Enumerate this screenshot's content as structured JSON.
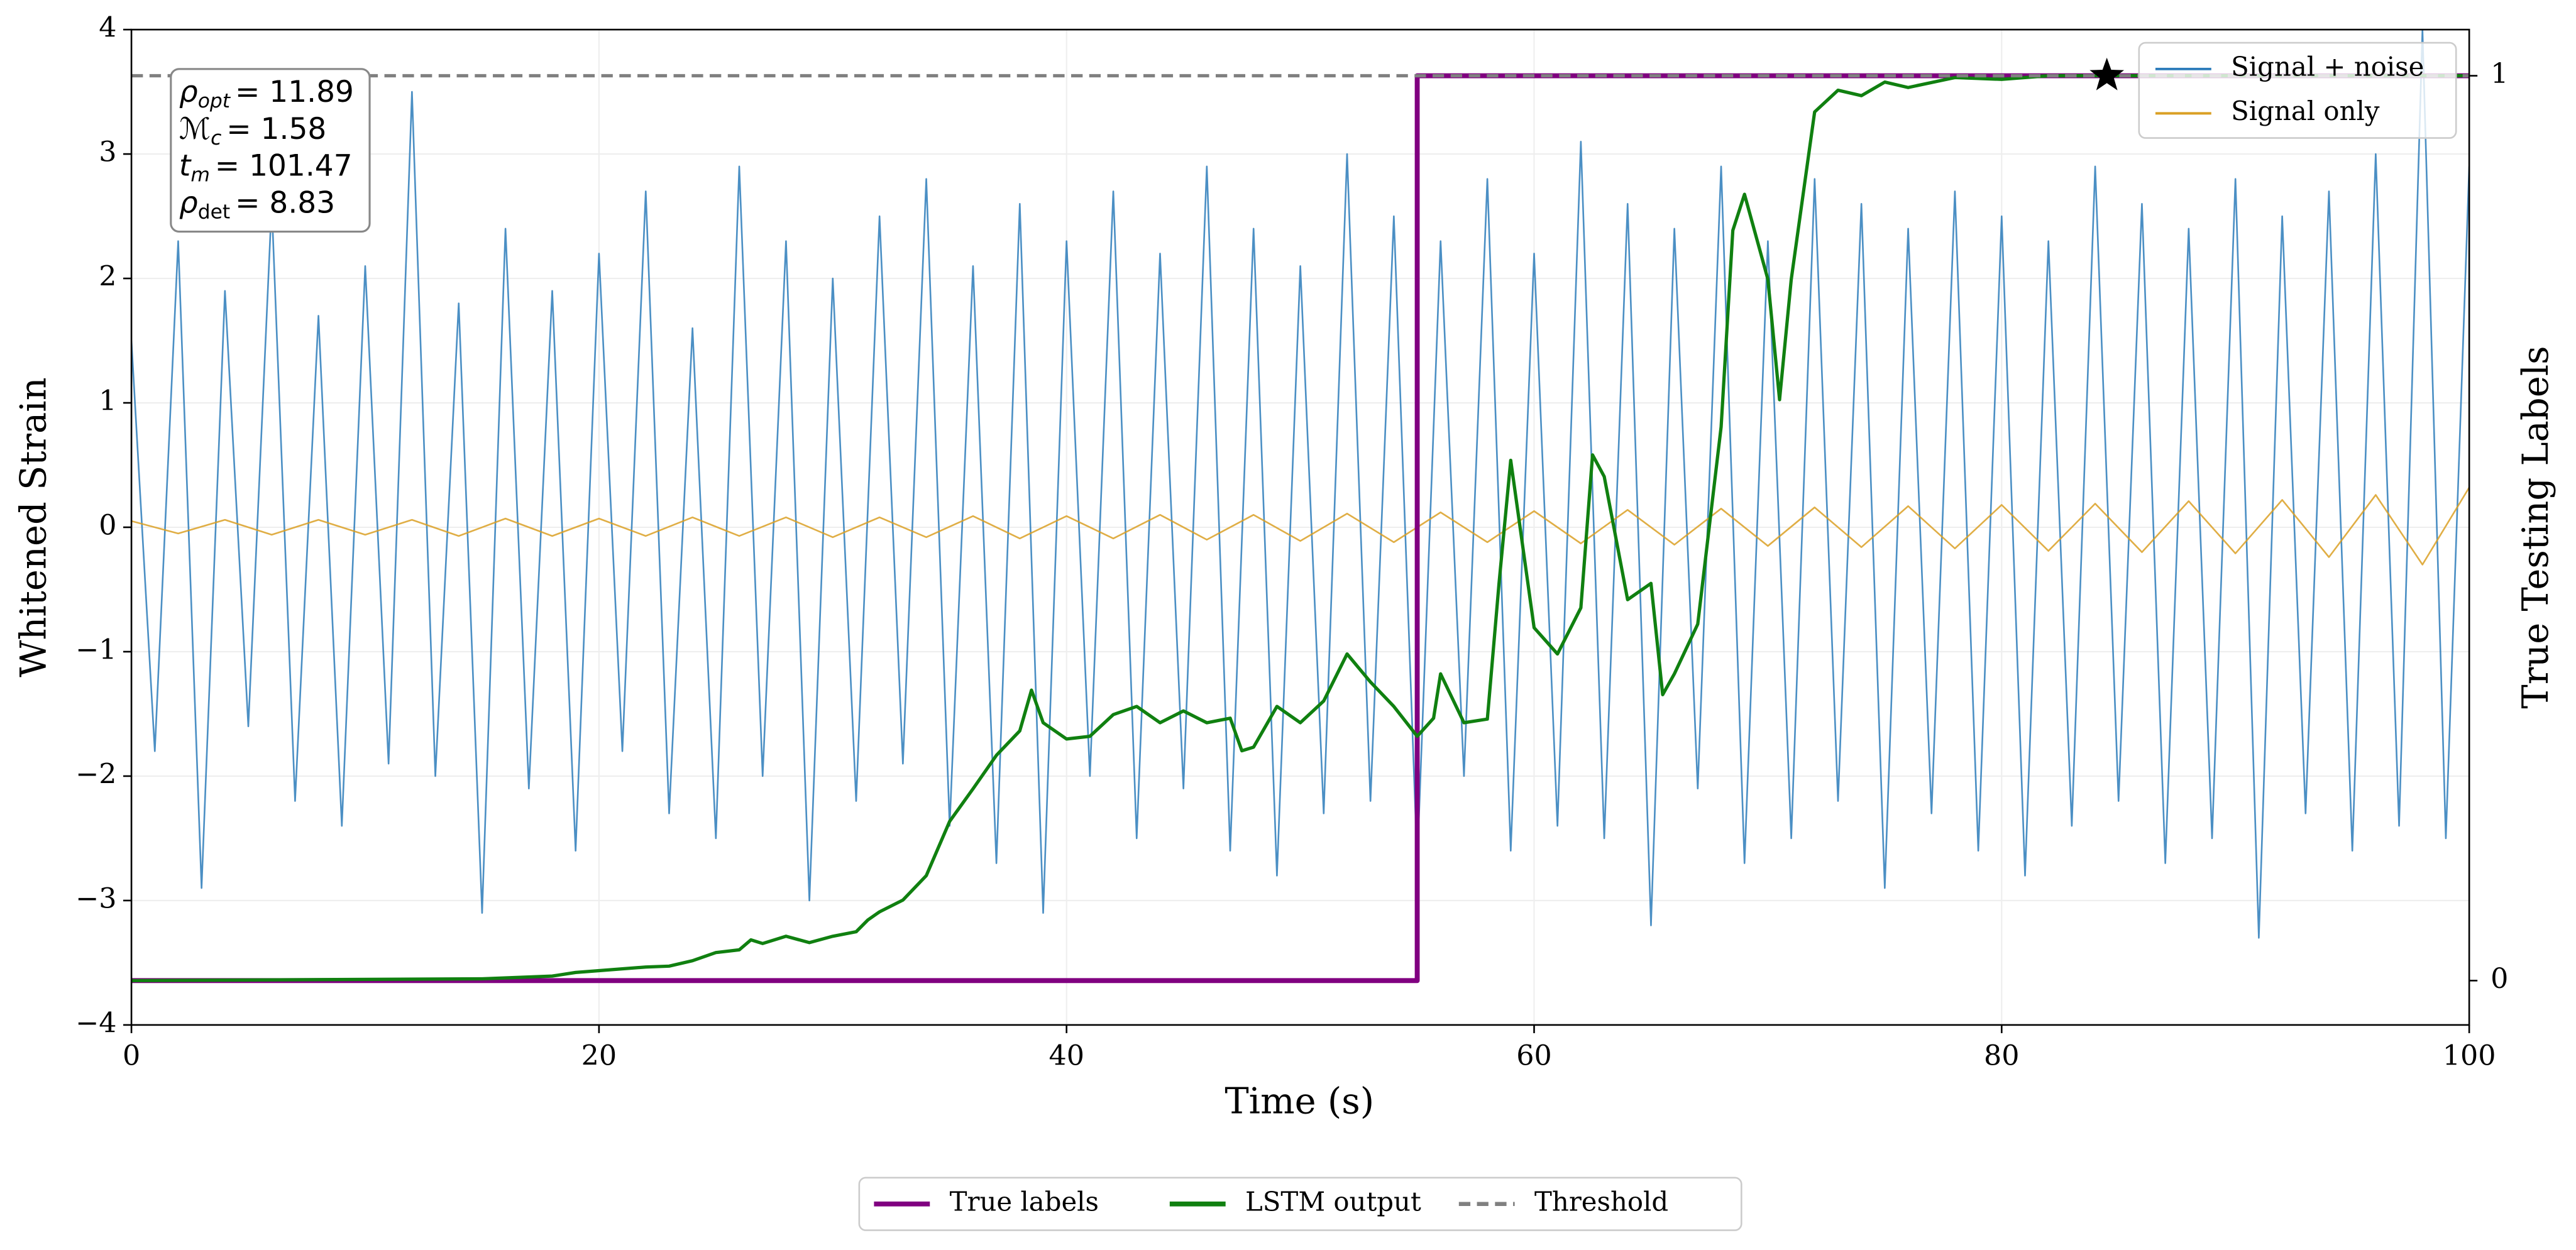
{
  "chart_data": {
    "type": "line",
    "xlabel": "Time (s)",
    "ylabel": "Whitened Strain",
    "y2label": "True Testing Labels",
    "xlim": [
      0,
      100
    ],
    "xticks": [
      0,
      20,
      40,
      60,
      80,
      100
    ],
    "ylim": [
      -4,
      4
    ],
    "yticks": [
      -4,
      -3,
      -2,
      -1,
      0,
      1,
      2,
      3,
      4
    ],
    "y2lim": [
      -0.049,
      1.051
    ],
    "y2ticks": [
      0,
      1
    ],
    "grid": true,
    "series": [
      {
        "name": "Signal + noise",
        "color": "#2b7bba",
        "axis": "y",
        "legend": "upper right",
        "x": [
          0,
          1,
          2,
          3,
          4,
          5,
          6,
          7,
          8,
          9,
          10,
          11,
          12,
          13,
          14,
          15,
          16,
          17,
          18,
          19,
          20,
          21,
          22,
          23,
          24,
          25,
          26,
          27,
          28,
          29,
          30,
          31,
          32,
          33,
          34,
          35,
          36,
          37,
          38,
          39,
          40,
          41,
          42,
          43,
          44,
          45,
          46,
          47,
          48,
          49,
          50,
          51,
          52,
          53,
          54,
          55,
          56,
          57,
          58,
          59,
          60,
          61,
          62,
          63,
          64,
          65,
          66,
          67,
          68,
          69,
          70,
          71,
          72,
          73,
          74,
          75,
          76,
          77,
          78,
          79,
          80,
          81,
          82,
          83,
          84,
          85,
          86,
          87,
          88,
          89,
          90,
          91,
          92,
          93,
          94,
          95,
          96,
          97,
          98,
          99,
          100
        ],
        "values": [
          1.5,
          -1.8,
          2.3,
          -2.9,
          1.9,
          -1.6,
          2.6,
          -2.2,
          1.7,
          -2.4,
          2.1,
          -1.9,
          3.5,
          -2.0,
          1.8,
          -3.1,
          2.4,
          -2.1,
          1.9,
          -2.6,
          2.2,
          -1.8,
          2.7,
          -2.3,
          1.6,
          -2.5,
          2.9,
          -2.0,
          2.3,
          -3.0,
          2.0,
          -2.2,
          2.5,
          -1.9,
          2.8,
          -2.4,
          2.1,
          -2.7,
          2.6,
          -3.1,
          2.3,
          -2.0,
          2.7,
          -2.5,
          2.2,
          -2.1,
          2.9,
          -2.6,
          2.4,
          -2.8,
          2.1,
          -2.3,
          3.0,
          -2.2,
          2.5,
          -2.7,
          2.3,
          -2.0,
          2.8,
          -2.6,
          2.2,
          -2.4,
          3.1,
          -2.5,
          2.6,
          -3.2,
          2.4,
          -2.1,
          2.9,
          -2.7,
          2.3,
          -2.5,
          2.8,
          -2.2,
          2.6,
          -2.9,
          2.4,
          -2.3,
          2.7,
          -2.6,
          2.5,
          -2.8,
          2.3,
          -2.4,
          2.9,
          -2.2,
          2.6,
          -2.7,
          2.4,
          -2.5,
          2.8,
          -3.3,
          2.5,
          -2.3,
          2.7,
          -2.6,
          3.0,
          -2.4,
          4.0,
          -2.5,
          2.9
        ]
      },
      {
        "name": "Signal only",
        "color": "#daa025",
        "axis": "y",
        "legend": "upper right",
        "x": [
          0,
          2,
          4,
          6,
          8,
          10,
          12,
          14,
          16,
          18,
          20,
          22,
          24,
          26,
          28,
          30,
          32,
          34,
          36,
          38,
          40,
          42,
          44,
          46,
          48,
          50,
          52,
          54,
          56,
          58,
          60,
          62,
          64,
          66,
          68,
          70,
          72,
          74,
          76,
          78,
          80,
          82,
          84,
          86,
          88,
          90,
          92,
          94,
          96,
          98,
          100
        ],
        "values": [
          0.05,
          -0.05,
          0.06,
          -0.06,
          0.06,
          -0.06,
          0.06,
          -0.07,
          0.07,
          -0.07,
          0.07,
          -0.07,
          0.08,
          -0.07,
          0.08,
          -0.08,
          0.08,
          -0.08,
          0.09,
          -0.09,
          0.09,
          -0.09,
          0.1,
          -0.1,
          0.1,
          -0.11,
          0.11,
          -0.12,
          0.12,
          -0.12,
          0.13,
          -0.13,
          0.14,
          -0.14,
          0.15,
          -0.15,
          0.16,
          -0.16,
          0.17,
          -0.17,
          0.18,
          -0.19,
          0.19,
          -0.2,
          0.21,
          -0.21,
          0.22,
          -0.24,
          0.26,
          -0.3,
          0.32
        ]
      },
      {
        "name": "True labels",
        "color": "#800080",
        "axis": "y2",
        "legend": "lower center",
        "x": [
          0,
          55,
          55,
          100
        ],
        "values": [
          0,
          0,
          1,
          1
        ]
      },
      {
        "name": "LSTM output",
        "color": "#108010",
        "axis": "y2",
        "legend": "lower center",
        "x": [
          0,
          15,
          18,
          19,
          20,
          22,
          23,
          24,
          25,
          26,
          26.5,
          27,
          28,
          29,
          30,
          31,
          31.5,
          32,
          33,
          34,
          35,
          36,
          37,
          38,
          38.5,
          39,
          40,
          41,
          42,
          43,
          44,
          45,
          46,
          47,
          47.5,
          48,
          49,
          50,
          51,
          52,
          53,
          54,
          55,
          55.7,
          56,
          57,
          58,
          58.5,
          59,
          60,
          61,
          62,
          62.5,
          63,
          64,
          65,
          65.5,
          66,
          67,
          68,
          68.5,
          69,
          70,
          70.5,
          71,
          72,
          73,
          74,
          75,
          76,
          78,
          80,
          82,
          84,
          90,
          100
        ],
        "values": [
          0,
          0.002,
          0.005,
          0.009,
          0.011,
          0.015,
          0.016,
          0.022,
          0.031,
          0.034,
          0.045,
          0.041,
          0.049,
          0.042,
          0.049,
          0.054,
          0.067,
          0.076,
          0.089,
          0.116,
          0.176,
          0.212,
          0.249,
          0.276,
          0.321,
          0.285,
          0.267,
          0.27,
          0.294,
          0.303,
          0.285,
          0.298,
          0.285,
          0.29,
          0.254,
          0.258,
          0.303,
          0.285,
          0.309,
          0.361,
          0.33,
          0.303,
          0.27,
          0.29,
          0.339,
          0.285,
          0.289,
          0.439,
          0.575,
          0.39,
          0.361,
          0.412,
          0.581,
          0.557,
          0.421,
          0.439,
          0.316,
          0.339,
          0.394,
          0.612,
          0.829,
          0.869,
          0.775,
          0.642,
          0.775,
          0.96,
          0.984,
          0.978,
          0.993,
          0.987,
          0.998,
          0.996,
          1,
          1,
          1,
          1
        ]
      }
    ],
    "threshold": {
      "name": "Threshold",
      "value": 1,
      "color": "#808080",
      "axis": "y2"
    },
    "detection": {
      "x": 84.5,
      "y": 1,
      "color": "#000000",
      "axis": "y2"
    },
    "annotations": [
      {
        "symbol": "ρ",
        "sub": "opt",
        "text": "= 11.89"
      },
      {
        "symbol": "ℳ",
        "sub": "c",
        "text": "= 1.58"
      },
      {
        "symbol": "t",
        "sub": "m",
        "text": "= 101.47"
      },
      {
        "symbol": "ρ",
        "sub": "det",
        "text": "= 8.83"
      }
    ]
  }
}
